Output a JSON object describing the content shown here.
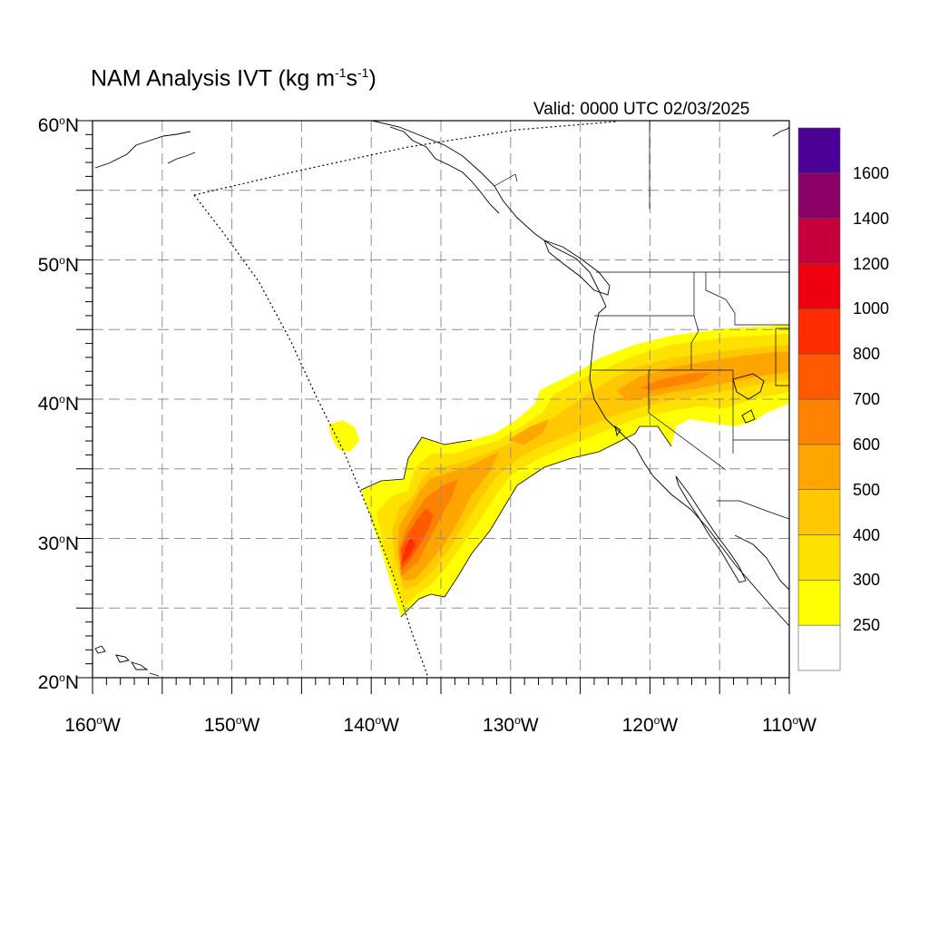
{
  "title": {
    "text": "NAM Analysis IVT (kg m",
    "sup1": "-1",
    "mid": "s",
    "sup2": "-1",
    "end": ")"
  },
  "valid": "Valid: 0000 UTC 02/03/2025",
  "lat_labels": [
    {
      "value": 60,
      "text": "60",
      "suffix": "N"
    },
    {
      "value": 50,
      "text": "50",
      "suffix": "N"
    },
    {
      "value": 40,
      "text": "40",
      "suffix": "N"
    },
    {
      "value": 30,
      "text": "30",
      "suffix": "N"
    },
    {
      "value": 20,
      "text": "20",
      "suffix": "N"
    }
  ],
  "lon_labels": [
    {
      "value": -160,
      "text": "160",
      "suffix": "W"
    },
    {
      "value": -150,
      "text": "150",
      "suffix": "W"
    },
    {
      "value": -140,
      "text": "140",
      "suffix": "W"
    },
    {
      "value": -130,
      "text": "130",
      "suffix": "W"
    },
    {
      "value": -120,
      "text": "120",
      "suffix": "W"
    },
    {
      "value": -110,
      "text": "110",
      "suffix": "W"
    }
  ],
  "map_extent": {
    "lon": [
      -160,
      -110
    ],
    "lat": [
      20,
      60
    ]
  },
  "colorbar": {
    "colors": [
      "#ffffff",
      "#ffff00",
      "#ffe100",
      "#ffc800",
      "#ffa500",
      "#ff8200",
      "#ff5a00",
      "#ff2d00",
      "#ee0010",
      "#c5003c",
      "#8b0066",
      "#4b0096"
    ],
    "labels": [
      "250",
      "300",
      "400",
      "500",
      "600",
      "700",
      "800",
      "1000",
      "1200",
      "1400",
      "1600"
    ]
  },
  "colors": {
    "ivt_250": "#ffff00",
    "ivt_300": "#ffe100",
    "ivt_400": "#ffc800",
    "ivt_500": "#ffa500",
    "ivt_600": "#ff8200",
    "ivt_700": "#ff5a00",
    "ivt_800": "#ff2d00",
    "grid": "#909090",
    "coast": "#000000"
  }
}
